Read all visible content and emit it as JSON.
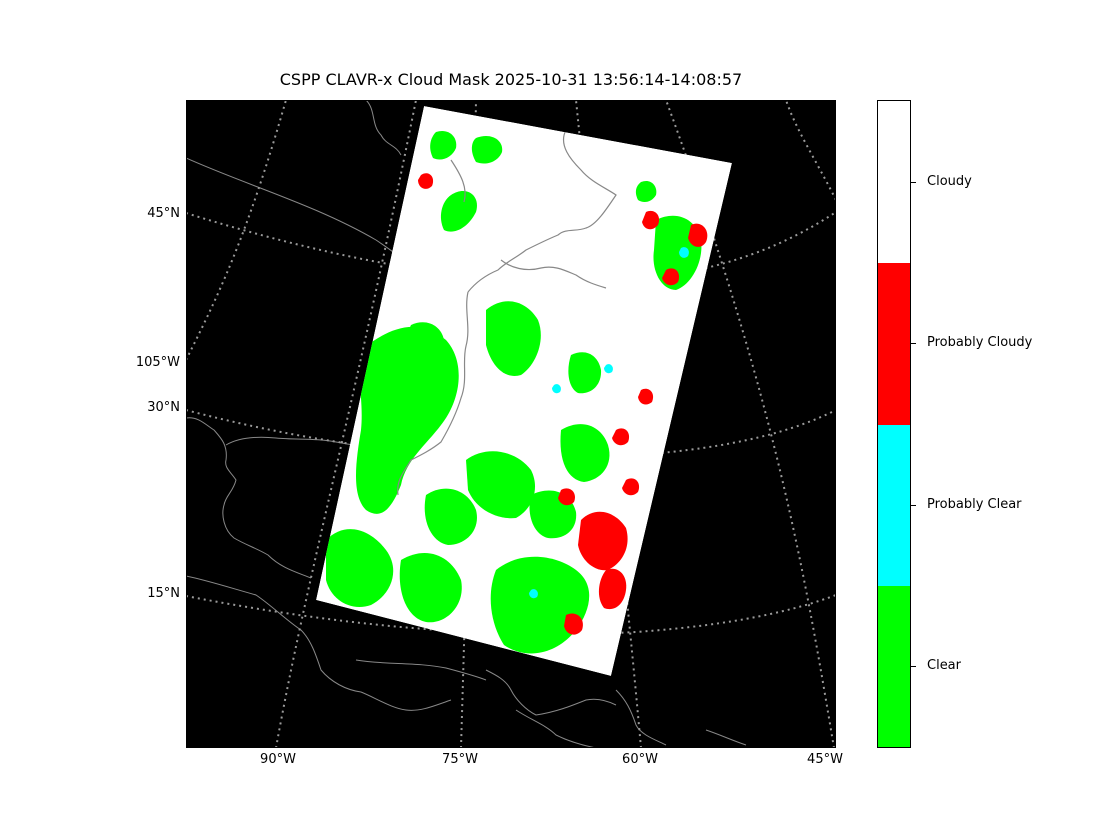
{
  "title": "CSPP CLAVR-x Cloud Mask 2025-10-31 13:56:14-14:08:57",
  "map": {
    "background_color": "#000000",
    "coastline_color": "#888888",
    "gridline_color": "#9a9a9a",
    "lat_labels": [
      "45°N",
      "105°W",
      "30°N",
      "15°N"
    ],
    "lon_labels": [
      "90°W",
      "75°W",
      "60°W",
      "45°W"
    ]
  },
  "legend": {
    "categories": [
      {
        "label": "Cloudy",
        "color": "#ffffff"
      },
      {
        "label": "Probably Cloudy",
        "color": "#ff0000"
      },
      {
        "label": "Probably Clear",
        "color": "#00ffff"
      },
      {
        "label": "Clear",
        "color": "#00ff00"
      }
    ]
  }
}
